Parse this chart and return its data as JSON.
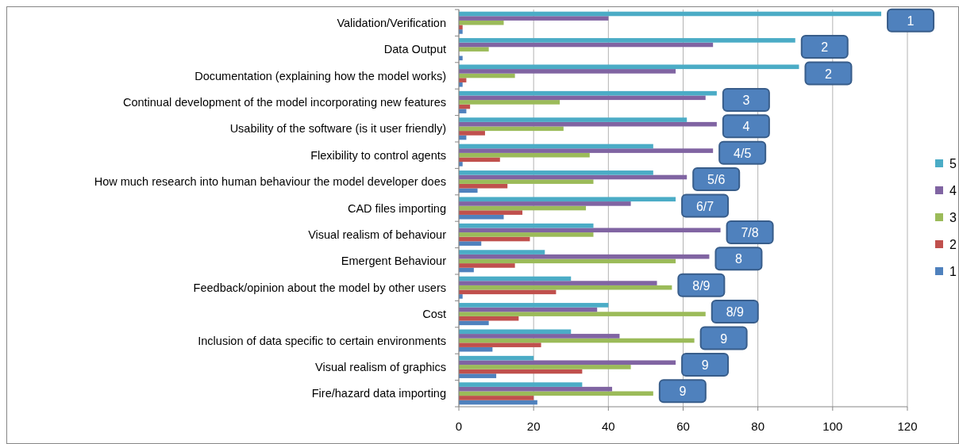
{
  "chart_data": {
    "type": "bar",
    "orientation": "horizontal",
    "categories": [
      "Validation/Verification",
      "Data Output",
      "Documentation (explaining how the model works)",
      "Continual development of the model incorporating new features",
      "Usability of the software (is it user friendly)",
      "Flexibility to control agents",
      "How much research into human behaviour the model developer does",
      "CAD files importing",
      "Visual realism of behaviour",
      "Emergent Behaviour",
      "Feedback/opinion about the model by other users",
      "Cost",
      "Inclusion of data specific to certain environments",
      "Visual realism of graphics",
      "Fire/hazard data importing"
    ],
    "series": [
      {
        "name": "1",
        "color": "#4f81bd",
        "values": [
          1,
          1,
          1,
          2,
          2,
          1,
          5,
          12,
          6,
          4,
          1,
          8,
          9,
          10,
          21
        ]
      },
      {
        "name": "2",
        "color": "#c0504d",
        "values": [
          1,
          0,
          2,
          3,
          7,
          11,
          13,
          17,
          19,
          15,
          26,
          16,
          22,
          33,
          20
        ]
      },
      {
        "name": "3",
        "color": "#9bbb59",
        "values": [
          12,
          8,
          15,
          27,
          28,
          35,
          36,
          34,
          36,
          58,
          57,
          66,
          63,
          46,
          52
        ]
      },
      {
        "name": "4",
        "color": "#8064a2",
        "values": [
          40,
          68,
          58,
          66,
          69,
          68,
          61,
          46,
          70,
          67,
          53,
          37,
          43,
          58,
          41
        ]
      },
      {
        "name": "5",
        "color": "#4bacc6",
        "values": [
          113,
          90,
          91,
          69,
          61,
          52,
          52,
          58,
          36,
          23,
          30,
          40,
          30,
          20,
          33
        ]
      }
    ],
    "xlim": [
      0,
      120
    ],
    "xticks": [
      0,
      20,
      40,
      60,
      80,
      100,
      120
    ],
    "grid": "x",
    "legend": "right",
    "annotations": [
      "1",
      "2",
      "2",
      "3",
      "4",
      "4/5",
      "5/6",
      "6/7",
      "7/8",
      "8",
      "8/9",
      "8/9",
      "9",
      "9",
      "9"
    ]
  }
}
